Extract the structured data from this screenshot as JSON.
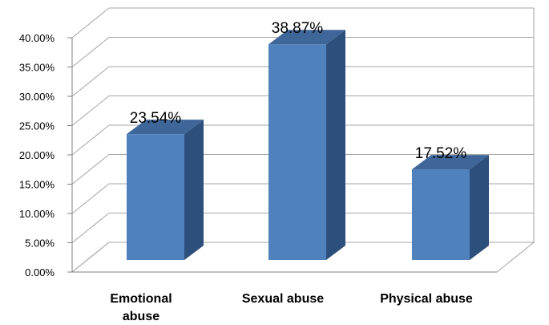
{
  "chart_data": {
    "type": "bar",
    "categories": [
      "Emotional abuse",
      "Sexual abuse",
      "Physical abuse"
    ],
    "category_label_lines": [
      [
        "Emotional",
        "abuse"
      ],
      [
        "Sexual abuse"
      ],
      [
        "Physical abuse"
      ]
    ],
    "values": [
      23.54,
      38.87,
      17.52
    ],
    "data_labels": [
      "23.54%",
      "38.87%",
      "17.52%"
    ],
    "yticks": [
      "0.00%",
      "5.00%",
      "10.00%",
      "15.00%",
      "20.00%",
      "25.00%",
      "30.00%",
      "35.00%",
      "40.00%"
    ],
    "ylim": [
      0,
      40
    ],
    "grid": true,
    "legend": "none",
    "colors": {
      "bar_front": "#4f81bd",
      "bar_side": "#2d4f7c",
      "bar_top": "#3e6699",
      "grid": "#a6a6a6"
    }
  }
}
